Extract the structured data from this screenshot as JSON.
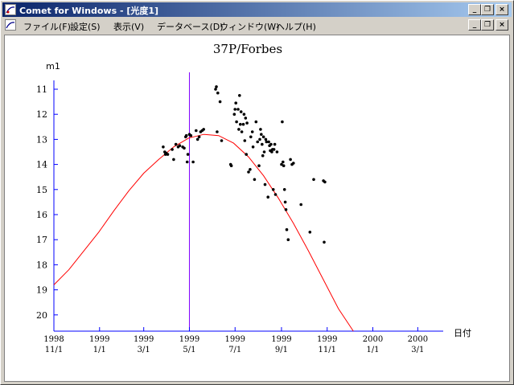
{
  "window": {
    "title": "Comet for Windows - [光度1]",
    "caption_buttons": [
      "minimize-icon",
      "restore-icon",
      "close-icon"
    ]
  },
  "menu": {
    "items": [
      "ファイル(F)",
      "設定(S)",
      "表示(V)",
      "データベース(D)",
      "ウィンドウ(W)",
      "ヘルプ(H)"
    ]
  },
  "colors": {
    "curve": "#ff0000",
    "axis": "#0000ff",
    "marker": "#8000ff",
    "points": "#000000"
  },
  "chart_data": {
    "type": "scatter",
    "title": "37P/Forbes",
    "ylabel": "m1",
    "xlabel": "日付",
    "ylim": [
      20.7,
      10.6
    ],
    "y_inverted": true,
    "y_ticks": [
      11,
      12,
      13,
      14,
      15,
      16,
      17,
      18,
      19,
      20
    ],
    "x_ticks": [
      {
        "year": "1998",
        "date": "11/1"
      },
      {
        "year": "1999",
        "date": "1/1"
      },
      {
        "year": "1999",
        "date": "3/1"
      },
      {
        "year": "1999",
        "date": "5/1"
      },
      {
        "year": "1999",
        "date": "7/1"
      },
      {
        "year": "1999",
        "date": "9/1"
      },
      {
        "year": "1999",
        "date": "11/1"
      },
      {
        "year": "2000",
        "date": "1/1"
      },
      {
        "year": "2000",
        "date": "3/1"
      }
    ],
    "x_tick_days": [
      0,
      61,
      120,
      181,
      242,
      304,
      365,
      426,
      486
    ],
    "xlim_days": [
      0,
      520
    ],
    "vertical_marker_day": 181,
    "observations": [
      [
        146,
        13.3
      ],
      [
        148,
        13.5
      ],
      [
        149,
        13.6
      ],
      [
        150,
        13.55
      ],
      [
        152,
        13.6
      ],
      [
        158,
        13.4
      ],
      [
        160,
        13.8
      ],
      [
        163,
        13.2
      ],
      [
        166,
        13.3
      ],
      [
        168,
        13.25
      ],
      [
        172,
        13.3
      ],
      [
        174,
        13.35
      ],
      [
        176,
        12.9
      ],
      [
        177,
        12.85
      ],
      [
        178,
        13.9
      ],
      [
        179,
        13.6
      ],
      [
        181,
        12.8
      ],
      [
        183,
        12.85
      ],
      [
        186,
        13.9
      ],
      [
        190,
        12.65
      ],
      [
        192,
        13.0
      ],
      [
        194,
        12.9
      ],
      [
        196,
        12.7
      ],
      [
        198,
        12.65
      ],
      [
        200,
        12.6
      ],
      [
        218,
        12.7
      ],
      [
        216,
        11.0
      ],
      [
        217,
        10.9
      ],
      [
        219,
        11.15
      ],
      [
        222,
        11.5
      ],
      [
        224,
        13.05
      ],
      [
        236,
        14.0
      ],
      [
        237,
        14.05
      ],
      [
        241,
        12.0
      ],
      [
        242,
        11.8
      ],
      [
        243,
        11.55
      ],
      [
        244,
        12.3
      ],
      [
        246,
        11.8
      ],
      [
        247,
        12.6
      ],
      [
        248,
        11.25
      ],
      [
        249,
        12.4
      ],
      [
        250,
        11.9
      ],
      [
        251,
        12.7
      ],
      [
        253,
        12.4
      ],
      [
        254,
        12.0
      ],
      [
        255,
        13.05
      ],
      [
        256,
        12.15
      ],
      [
        257,
        13.6
      ],
      [
        258,
        12.35
      ],
      [
        260,
        14.3
      ],
      [
        262,
        14.2
      ],
      [
        263,
        12.9
      ],
      [
        265,
        12.7
      ],
      [
        266,
        13.3
      ],
      [
        268,
        14.6
      ],
      [
        270,
        12.3
      ],
      [
        272,
        13.1
      ],
      [
        274,
        14.05
      ],
      [
        275,
        13.0
      ],
      [
        276,
        12.6
      ],
      [
        277,
        12.8
      ],
      [
        278,
        13.2
      ],
      [
        279,
        13.65
      ],
      [
        280,
        12.9
      ],
      [
        281,
        13.5
      ],
      [
        282,
        14.8
      ],
      [
        283,
        13.0
      ],
      [
        284,
        13.1
      ],
      [
        286,
        15.3
      ],
      [
        287,
        13.1
      ],
      [
        288,
        13.25
      ],
      [
        289,
        13.45
      ],
      [
        290,
        13.2
      ],
      [
        291,
        13.5
      ],
      [
        292,
        13.4
      ],
      [
        293,
        15.0
      ],
      [
        294,
        13.4
      ],
      [
        295,
        13.2
      ],
      [
        296,
        15.2
      ],
      [
        298,
        13.5
      ],
      [
        304,
        14.0
      ],
      [
        305,
        12.3
      ],
      [
        306,
        13.9
      ],
      [
        307,
        14.05
      ],
      [
        308,
        15.0
      ],
      [
        309,
        15.5
      ],
      [
        310,
        15.8
      ],
      [
        311,
        16.6
      ],
      [
        313,
        17.0
      ],
      [
        316,
        13.8
      ],
      [
        318,
        14.0
      ],
      [
        320,
        13.95
      ],
      [
        330,
        15.6
      ],
      [
        342,
        16.7
      ],
      [
        347,
        14.6
      ],
      [
        360,
        14.65
      ],
      [
        361,
        17.1
      ],
      [
        362,
        14.7
      ]
    ],
    "model_curve": [
      [
        0,
        18.8
      ],
      [
        20,
        18.2
      ],
      [
        40,
        17.45
      ],
      [
        60,
        16.7
      ],
      [
        80,
        15.85
      ],
      [
        100,
        15.05
      ],
      [
        120,
        14.35
      ],
      [
        140,
        13.8
      ],
      [
        160,
        13.3
      ],
      [
        180,
        12.95
      ],
      [
        200,
        12.8
      ],
      [
        220,
        12.85
      ],
      [
        240,
        13.15
      ],
      [
        260,
        13.7
      ],
      [
        280,
        14.45
      ],
      [
        300,
        15.35
      ],
      [
        320,
        16.35
      ],
      [
        340,
        17.45
      ],
      [
        360,
        18.6
      ],
      [
        380,
        19.75
      ],
      [
        400,
        20.75
      ]
    ]
  }
}
